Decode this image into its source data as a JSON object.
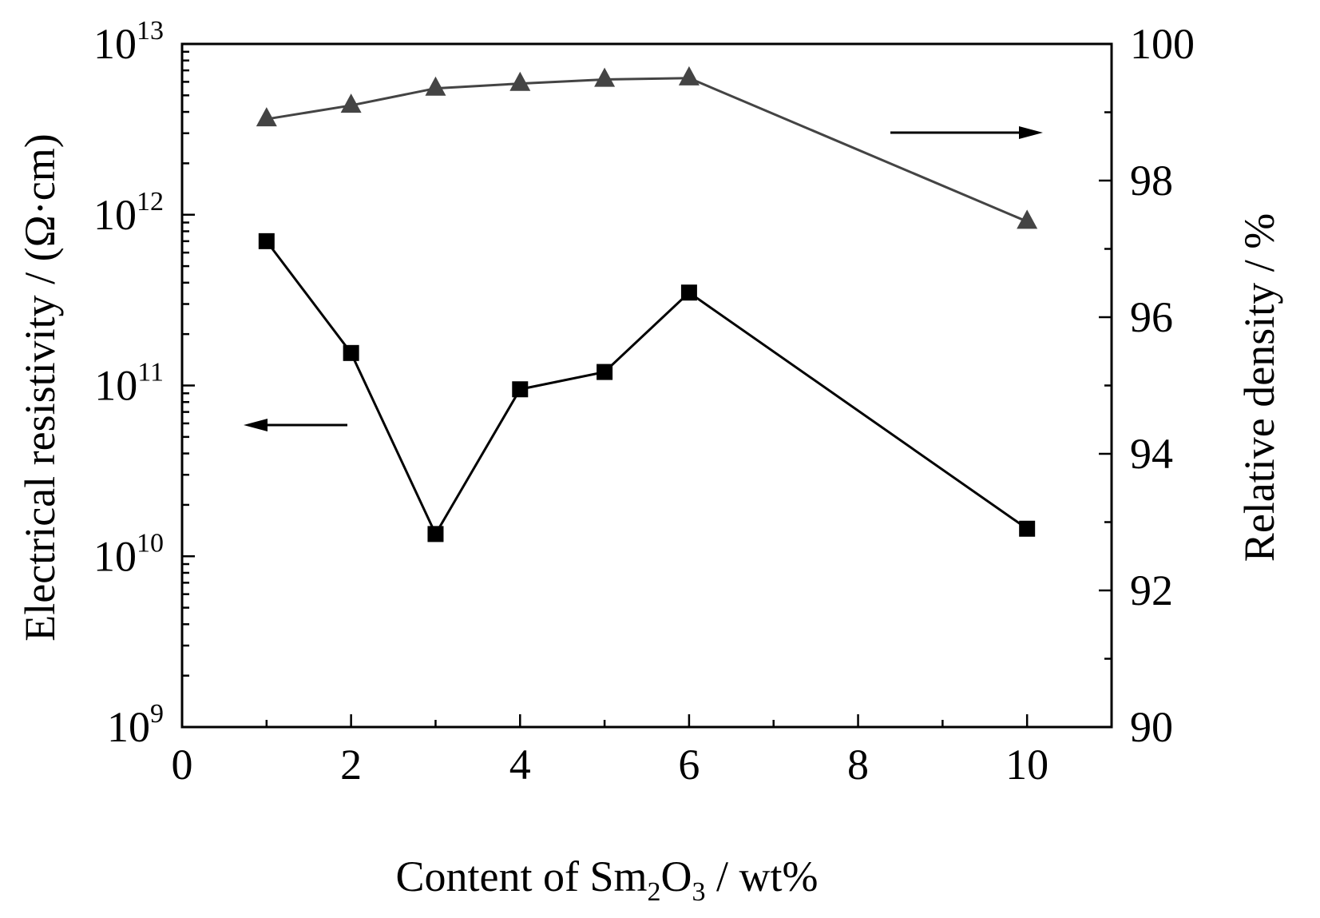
{
  "chart_data": {
    "type": "line",
    "xlabel": "Content of Sm",
    "xlabel_sub1": "2",
    "xlabel_mid": "O",
    "xlabel_sub2": "3",
    "xlabel_tail": " / wt%",
    "ylabel_left": "Electrical resistivity / (Ω·cm)",
    "ylabel_right": "Relative density / %",
    "xlim": [
      0,
      11
    ],
    "xticks": [
      "0",
      "2",
      "4",
      "6",
      "8",
      "10"
    ],
    "yleft_scale": "log",
    "yleft_lim": [
      1000000000.0,
      10000000000000.0
    ],
    "yleft_ticks": [
      {
        "base": "10",
        "exp": "9"
      },
      {
        "base": "10",
        "exp": "10"
      },
      {
        "base": "10",
        "exp": "11"
      },
      {
        "base": "10",
        "exp": "12"
      },
      {
        "base": "10",
        "exp": "13"
      }
    ],
    "yright_lim": [
      90,
      100
    ],
    "yright_ticks": [
      "90",
      "92",
      "94",
      "96",
      "98",
      "100"
    ],
    "grid": false,
    "series": [
      {
        "axis": "left",
        "marker": "square",
        "color": "#000000",
        "x": [
          1,
          2,
          3,
          4,
          5,
          6,
          10
        ],
        "y": [
          700000000000.0,
          155000000000.0,
          13500000000.0,
          95000000000.0,
          120000000000.0,
          350000000000.0,
          14500000000.0
        ]
      },
      {
        "axis": "right",
        "marker": "triangle",
        "color": "#444444",
        "x": [
          1,
          2,
          3,
          4,
          5,
          6,
          10
        ],
        "y": [
          98.9,
          99.1,
          99.35,
          99.42,
          99.48,
          99.5,
          97.4
        ]
      }
    ],
    "annotations": [
      {
        "type": "arrow",
        "direction": "left",
        "refers_to": "left"
      },
      {
        "type": "arrow",
        "direction": "right",
        "refers_to": "right"
      }
    ]
  }
}
